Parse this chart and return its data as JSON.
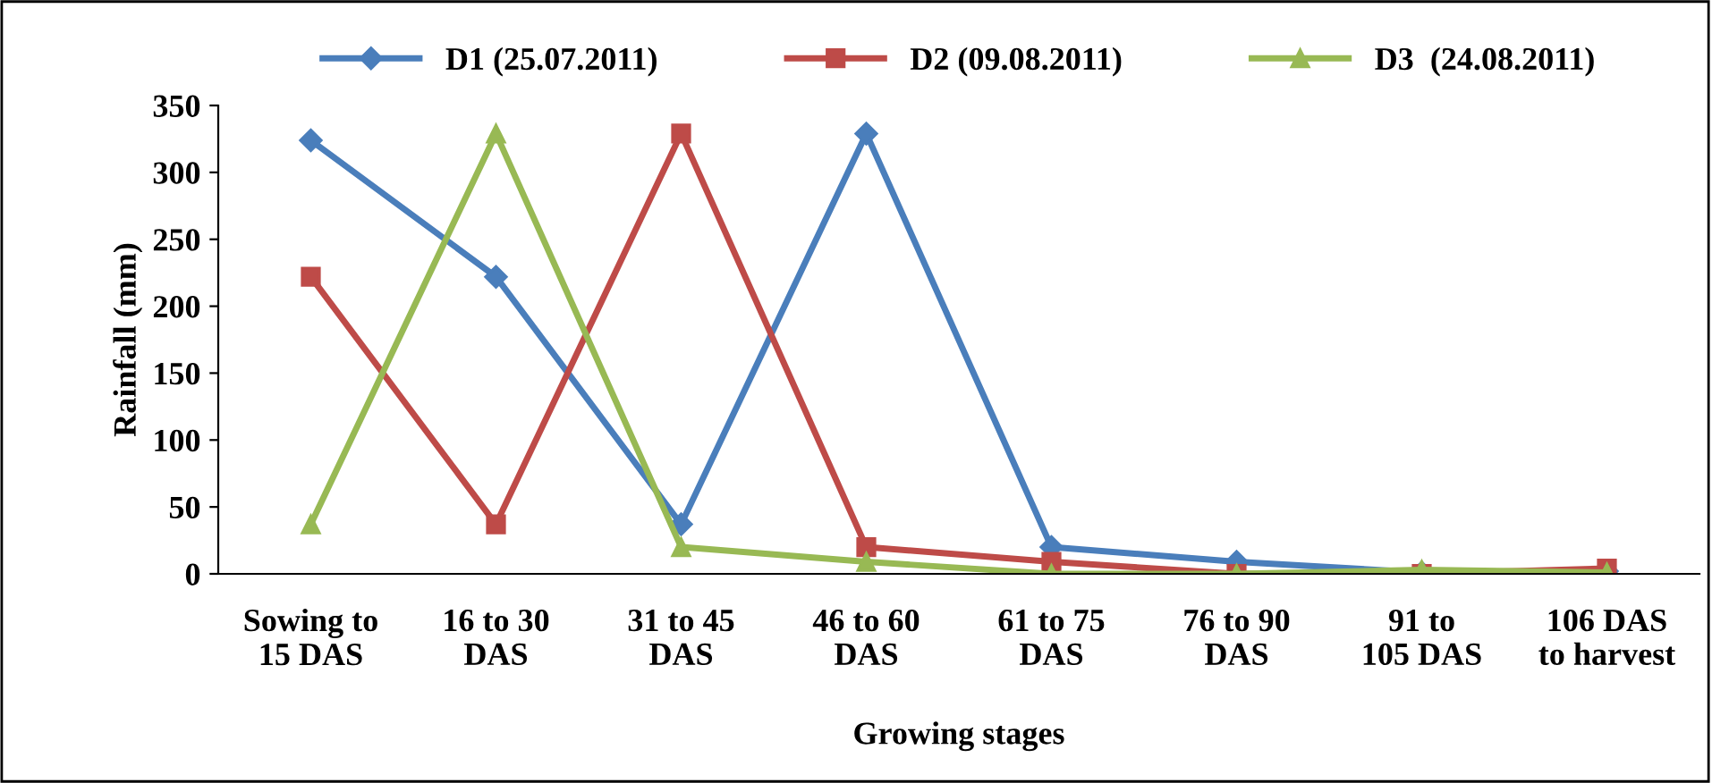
{
  "chart_data": {
    "type": "line",
    "xlabel": "Growing stages",
    "ylabel": "Rainfall (mm)",
    "categories": [
      "Sowing to\n15 DAS",
      "16 to 30\nDAS",
      "31 to 45\nDAS",
      "46 to 60\nDAS",
      "61 to 75\nDAS",
      "76 to 90\nDAS",
      "91 to\n105 DAS",
      "106 DAS\nto harvest"
    ],
    "series": [
      {
        "name": "D1 (25.07.2011)",
        "color": "#4a7ebb",
        "marker": "diamond",
        "values": [
          324,
          222,
          37,
          329,
          20,
          9,
          1,
          2
        ]
      },
      {
        "name": "D2 (09.08.2011)",
        "color": "#be4b48",
        "marker": "square",
        "values": [
          222,
          37,
          329,
          20,
          9,
          0,
          0,
          4
        ]
      },
      {
        "name": "D3  (24.08.2011)",
        "color": "#98b954",
        "marker": "triangle",
        "values": [
          37,
          329,
          20,
          9,
          0,
          0,
          3,
          1
        ]
      }
    ],
    "ylim": [
      0,
      350
    ],
    "yticks": [
      0,
      50,
      100,
      150,
      200,
      250,
      300,
      350
    ],
    "grid": false,
    "legend": "top",
    "line_style": "solid"
  }
}
